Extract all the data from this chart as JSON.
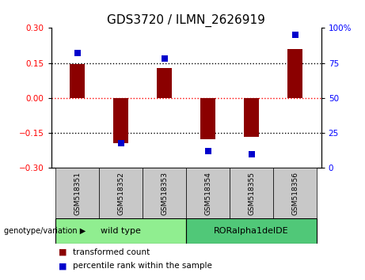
{
  "title": "GDS3720 / ILMN_2626919",
  "categories": [
    "GSM518351",
    "GSM518352",
    "GSM518353",
    "GSM518354",
    "GSM518355",
    "GSM518356"
  ],
  "bar_values": [
    0.145,
    -0.195,
    0.13,
    -0.175,
    -0.165,
    0.21
  ],
  "percentile_values": [
    82,
    18,
    78,
    12,
    10,
    95
  ],
  "bar_color": "#8B0000",
  "dot_color": "#0000CC",
  "ylim": [
    -0.3,
    0.3
  ],
  "yticks": [
    -0.3,
    -0.15,
    0,
    0.15,
    0.3
  ],
  "right_ylim": [
    0,
    100
  ],
  "right_yticks": [
    0,
    25,
    50,
    75,
    100
  ],
  "right_yticklabels": [
    "0",
    "25",
    "50",
    "75",
    "100%"
  ],
  "hline_black": [
    -0.15,
    0.15
  ],
  "hline_red": 0,
  "groups": [
    {
      "label": "wild type",
      "indices": [
        0,
        1,
        2
      ],
      "color": "#90EE90"
    },
    {
      "label": "RORalpha1delDE",
      "indices": [
        3,
        4,
        5
      ],
      "color": "#50C878"
    }
  ],
  "group_label": "genotype/variation",
  "legend_items": [
    {
      "label": "transformed count",
      "color": "#8B0000"
    },
    {
      "label": "percentile rank within the sample",
      "color": "#0000CC"
    }
  ],
  "bar_width": 0.35,
  "dot_size": 40,
  "background_color": "#FFFFFF",
  "plot_bg_color": "#FFFFFF",
  "title_fontsize": 11,
  "tick_fontsize": 7.5,
  "label_fontsize": 8,
  "sample_box_color": "#C8C8C8"
}
